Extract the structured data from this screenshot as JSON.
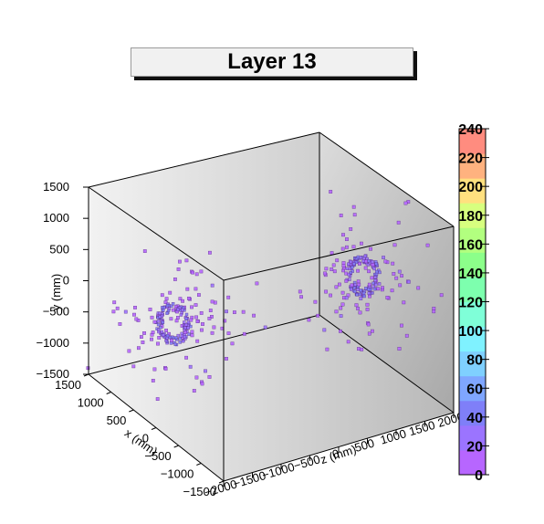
{
  "chart_data": {
    "type": "scatter",
    "title": "Layer 13",
    "xlabel": "x (mm)",
    "ylabel": "y (mm)",
    "zlabel": "z (mm)",
    "x_ticks": [
      "1500",
      "1000",
      "500",
      "0",
      "−500",
      "−1000",
      "−1500"
    ],
    "y_ticks": [
      "1500",
      "1000",
      "500",
      "0",
      "−500",
      "−1000",
      "−1500"
    ],
    "z_ticks": [
      "−2000",
      "−1500",
      "−1000",
      "−500",
      "0",
      "500",
      "1000",
      "1500",
      "2000"
    ],
    "xlim": [
      -1500,
      1500
    ],
    "ylim": [
      -1500,
      1500
    ],
    "zlim": [
      -2000,
      2000
    ],
    "colorbar": {
      "range": [
        0,
        240
      ],
      "ticks": [
        "0",
        "20",
        "40",
        "60",
        "80",
        "100",
        "120",
        "140",
        "160",
        "180",
        "200",
        "220",
        "240"
      ],
      "colors": [
        "#b766ff",
        "#9b74ff",
        "#7f7ff8",
        "#7fa6ff",
        "#7fd0ff",
        "#7ff2ff",
        "#7fffd8",
        "#7dffae",
        "#8cff8a",
        "#b2ff7f",
        "#d7ff7f",
        "#ffe07f",
        "#ffb27f",
        "#ff8c7f"
      ]
    },
    "clusters": [
      {
        "name": "",
        "z": -1800,
        "center": [
          50,
          -200
        ],
        "ring_radius": 180,
        "count": 220
      },
      {
        "name": "",
        "z": 1800,
        "center": [
          -100,
          400
        ],
        "ring_radius": 180,
        "count": 220
      }
    ],
    "grid": false
  }
}
